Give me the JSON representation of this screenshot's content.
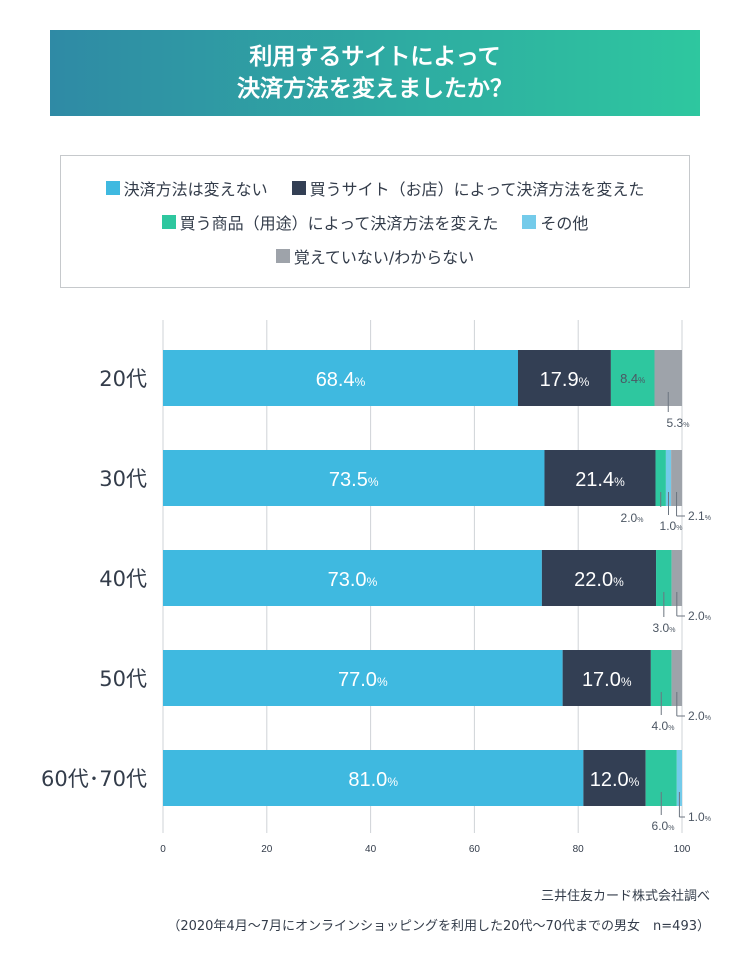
{
  "title": {
    "line1": "利用するサイトによって",
    "line2": "決済方法を変えましたか？"
  },
  "colors": {
    "no_change": "#3fb9e0",
    "by_site": "#333f54",
    "by_product": "#2ec79f",
    "other": "#74cbea",
    "unknown": "#9ea3aa"
  },
  "chart_data": {
    "type": "bar",
    "orientation": "horizontal",
    "stacked": true,
    "categories": [
      "20代",
      "30代",
      "40代",
      "50代",
      "60代･70代"
    ],
    "series": [
      {
        "name": "決済方法は変えない",
        "values": [
          68.4,
          73.5,
          73.0,
          77.0,
          81.0
        ]
      },
      {
        "name": "買うサイト（お店）によって決済方法を変えた",
        "values": [
          17.9,
          21.4,
          22.0,
          17.0,
          12.0
        ]
      },
      {
        "name": "買う商品（用途）によって決済方法を変えた",
        "values": [
          8.4,
          2.0,
          3.0,
          4.0,
          6.0
        ]
      },
      {
        "name": "その他",
        "values": [
          0,
          1.0,
          0,
          0,
          1.0
        ]
      },
      {
        "name": "覚えていない/わからない",
        "values": [
          5.3,
          2.1,
          2.0,
          2.0,
          0
        ]
      }
    ],
    "xlim": [
      0,
      100
    ],
    "xticks": [
      0,
      20,
      40,
      60,
      80,
      100
    ],
    "grid": true,
    "legend": "top",
    "value_unit": "%"
  },
  "source": {
    "line1": "三井住友カード株式会社調べ",
    "line2": "（2020年4月〜7月にオンラインショッピングを利用した20代〜70代までの男女　n=493）"
  }
}
